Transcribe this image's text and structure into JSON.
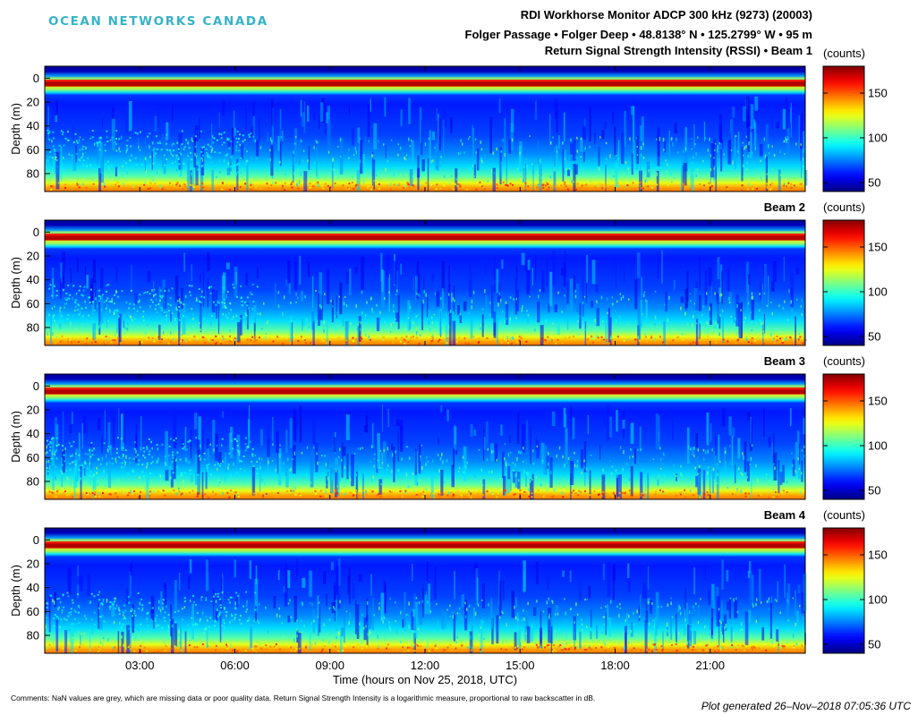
{
  "header": {
    "logo_text": "OCEAN NETWORKS CANADA",
    "title": "RDI Workhorse Monitor ADCP 300 kHz (9273) (20003)",
    "location": "Folger Passage  •  Folger Deep  •  48.8138° N  •  125.2799° W  •  95 m",
    "subtitle": "Return Signal Strength Intensity (RSSI) • Beam 1"
  },
  "footer": {
    "comments": "Comments: NaN values are grey, which are missing data or poor quality data. Return Signal Strength Intensity is a logarithmic measure, proportional to raw backscatter in dB.",
    "generated": "Plot generated 26–Nov–2018 07:05:36 UTC"
  },
  "chart_data": [
    {
      "type": "heatmap",
      "title": "Return Signal Strength Intensity (RSSI) • Beam 1",
      "xlabel": "Time (hours on Nov 25, 2018, UTC)",
      "ylabel": "Depth (m)",
      "x_ticks": [
        "03:00",
        "06:00",
        "09:00",
        "12:00",
        "15:00",
        "18:00",
        "21:00"
      ],
      "xlim_hours": [
        0,
        24
      ],
      "y_ticks": [
        0,
        20,
        40,
        60,
        80
      ],
      "ylim": [
        -10,
        95
      ],
      "y_reversed": true,
      "colorbar": {
        "label": "(counts)",
        "ticks": [
          50,
          100,
          150
        ],
        "range": [
          40,
          180
        ],
        "colormap": "jet"
      }
    },
    {
      "type": "heatmap",
      "title": "Beam 2",
      "ylabel": "Depth (m)",
      "y_ticks": [
        0,
        20,
        40,
        60,
        80
      ],
      "ylim": [
        -10,
        95
      ],
      "colorbar": {
        "label": "(counts)",
        "ticks": [
          50,
          100,
          150
        ],
        "range": [
          40,
          180
        ],
        "colormap": "jet"
      }
    },
    {
      "type": "heatmap",
      "title": "Beam 3",
      "ylabel": "Depth (m)",
      "y_ticks": [
        0,
        20,
        40,
        60,
        80
      ],
      "ylim": [
        -10,
        95
      ],
      "colorbar": {
        "label": "(counts)",
        "ticks": [
          50,
          100,
          150
        ],
        "range": [
          40,
          180
        ],
        "colormap": "jet"
      }
    },
    {
      "type": "heatmap",
      "title": "Beam 4",
      "ylabel": "Depth (m)",
      "y_ticks": [
        0,
        20,
        40,
        60,
        80
      ],
      "ylim": [
        -10,
        95
      ],
      "colorbar": {
        "label": "(counts)",
        "ticks": [
          50,
          100,
          150
        ],
        "range": [
          40,
          180
        ],
        "colormap": "jet"
      }
    }
  ],
  "beam_labels": [
    "Beam 2",
    "Beam 3",
    "Beam 4"
  ],
  "colors": {
    "logo": "#35b3c9"
  }
}
